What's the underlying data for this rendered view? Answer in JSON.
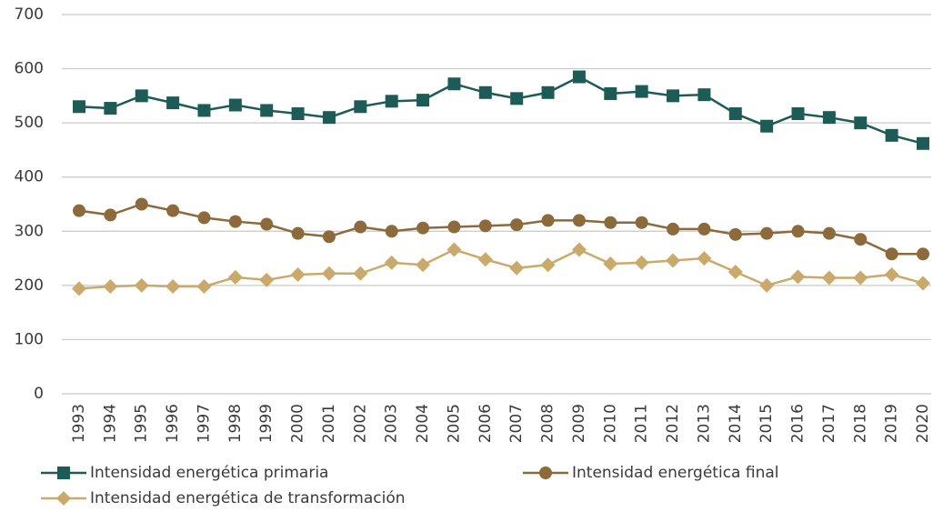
{
  "chart_data": {
    "type": "line",
    "categories": [
      "1993",
      "1994",
      "1995",
      "1996",
      "1997",
      "1998",
      "1999",
      "2000",
      "2001",
      "2002",
      "2003",
      "2004",
      "2005",
      "2006",
      "2007",
      "2008",
      "2009",
      "2010",
      "2011",
      "2012",
      "2013",
      "2014",
      "2015",
      "2016",
      "2017",
      "2018",
      "2019",
      "2020"
    ],
    "series": [
      {
        "name": "Intensidad energética primaria",
        "color": "#1d5b57",
        "marker": "square",
        "values": [
          530,
          527,
          550,
          537,
          523,
          533,
          523,
          517,
          510,
          530,
          540,
          542,
          572,
          556,
          545,
          556,
          585,
          554,
          558,
          550,
          552,
          517,
          494,
          517,
          510,
          500,
          477,
          462
        ]
      },
      {
        "name": "Intensidad energética final",
        "color": "#8c6a3c",
        "marker": "circle",
        "values": [
          338,
          330,
          350,
          338,
          325,
          318,
          313,
          296,
          290,
          308,
          300,
          306,
          308,
          310,
          312,
          320,
          320,
          316,
          316,
          304,
          304,
          294,
          296,
          300,
          296,
          285,
          258,
          258
        ]
      },
      {
        "name": "Intensidad energética de transformación",
        "color": "#c9aa6a",
        "marker": "diamond",
        "values": [
          194,
          198,
          200,
          198,
          198,
          215,
          210,
          220,
          222,
          222,
          242,
          238,
          266,
          248,
          232,
          238,
          266,
          240,
          242,
          246,
          250,
          225,
          200,
          216,
          214,
          214,
          220,
          204
        ]
      }
    ],
    "ylim": [
      0,
      700
    ],
    "yticks": [
      0,
      100,
      200,
      300,
      400,
      500,
      600,
      700
    ],
    "grid": true,
    "legend": "bottom"
  }
}
